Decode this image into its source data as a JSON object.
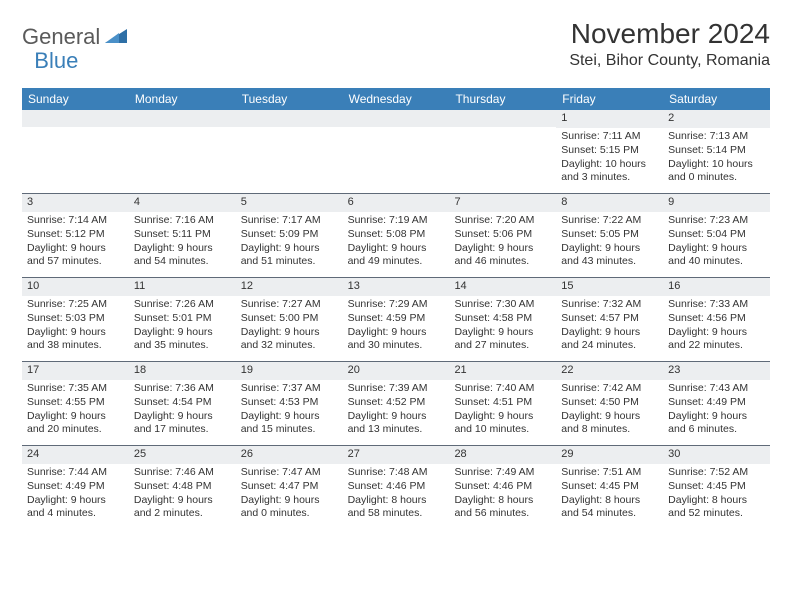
{
  "logo": {
    "word1": "General",
    "word2": "Blue"
  },
  "title": "November 2024",
  "location": "Stei, Bihor County, Romania",
  "dow": [
    "Sunday",
    "Monday",
    "Tuesday",
    "Wednesday",
    "Thursday",
    "Friday",
    "Saturday"
  ],
  "colors": {
    "header_bg": "#3a7fb8",
    "header_text": "#ffffff",
    "daynum_bg": "#eceef0",
    "border": "#5f6a78",
    "text": "#333333"
  },
  "fonts": {
    "title_size_pt": 21,
    "location_size_pt": 12,
    "dow_size_pt": 9,
    "cell_size_pt": 8
  },
  "weeks": [
    [
      {
        "n": "",
        "sr": "",
        "ss": "",
        "dl": ""
      },
      {
        "n": "",
        "sr": "",
        "ss": "",
        "dl": ""
      },
      {
        "n": "",
        "sr": "",
        "ss": "",
        "dl": ""
      },
      {
        "n": "",
        "sr": "",
        "ss": "",
        "dl": ""
      },
      {
        "n": "",
        "sr": "",
        "ss": "",
        "dl": ""
      },
      {
        "n": "1",
        "sr": "Sunrise: 7:11 AM",
        "ss": "Sunset: 5:15 PM",
        "dl": "Daylight: 10 hours and 3 minutes."
      },
      {
        "n": "2",
        "sr": "Sunrise: 7:13 AM",
        "ss": "Sunset: 5:14 PM",
        "dl": "Daylight: 10 hours and 0 minutes."
      }
    ],
    [
      {
        "n": "3",
        "sr": "Sunrise: 7:14 AM",
        "ss": "Sunset: 5:12 PM",
        "dl": "Daylight: 9 hours and 57 minutes."
      },
      {
        "n": "4",
        "sr": "Sunrise: 7:16 AM",
        "ss": "Sunset: 5:11 PM",
        "dl": "Daylight: 9 hours and 54 minutes."
      },
      {
        "n": "5",
        "sr": "Sunrise: 7:17 AM",
        "ss": "Sunset: 5:09 PM",
        "dl": "Daylight: 9 hours and 51 minutes."
      },
      {
        "n": "6",
        "sr": "Sunrise: 7:19 AM",
        "ss": "Sunset: 5:08 PM",
        "dl": "Daylight: 9 hours and 49 minutes."
      },
      {
        "n": "7",
        "sr": "Sunrise: 7:20 AM",
        "ss": "Sunset: 5:06 PM",
        "dl": "Daylight: 9 hours and 46 minutes."
      },
      {
        "n": "8",
        "sr": "Sunrise: 7:22 AM",
        "ss": "Sunset: 5:05 PM",
        "dl": "Daylight: 9 hours and 43 minutes."
      },
      {
        "n": "9",
        "sr": "Sunrise: 7:23 AM",
        "ss": "Sunset: 5:04 PM",
        "dl": "Daylight: 9 hours and 40 minutes."
      }
    ],
    [
      {
        "n": "10",
        "sr": "Sunrise: 7:25 AM",
        "ss": "Sunset: 5:03 PM",
        "dl": "Daylight: 9 hours and 38 minutes."
      },
      {
        "n": "11",
        "sr": "Sunrise: 7:26 AM",
        "ss": "Sunset: 5:01 PM",
        "dl": "Daylight: 9 hours and 35 minutes."
      },
      {
        "n": "12",
        "sr": "Sunrise: 7:27 AM",
        "ss": "Sunset: 5:00 PM",
        "dl": "Daylight: 9 hours and 32 minutes."
      },
      {
        "n": "13",
        "sr": "Sunrise: 7:29 AM",
        "ss": "Sunset: 4:59 PM",
        "dl": "Daylight: 9 hours and 30 minutes."
      },
      {
        "n": "14",
        "sr": "Sunrise: 7:30 AM",
        "ss": "Sunset: 4:58 PM",
        "dl": "Daylight: 9 hours and 27 minutes."
      },
      {
        "n": "15",
        "sr": "Sunrise: 7:32 AM",
        "ss": "Sunset: 4:57 PM",
        "dl": "Daylight: 9 hours and 24 minutes."
      },
      {
        "n": "16",
        "sr": "Sunrise: 7:33 AM",
        "ss": "Sunset: 4:56 PM",
        "dl": "Daylight: 9 hours and 22 minutes."
      }
    ],
    [
      {
        "n": "17",
        "sr": "Sunrise: 7:35 AM",
        "ss": "Sunset: 4:55 PM",
        "dl": "Daylight: 9 hours and 20 minutes."
      },
      {
        "n": "18",
        "sr": "Sunrise: 7:36 AM",
        "ss": "Sunset: 4:54 PM",
        "dl": "Daylight: 9 hours and 17 minutes."
      },
      {
        "n": "19",
        "sr": "Sunrise: 7:37 AM",
        "ss": "Sunset: 4:53 PM",
        "dl": "Daylight: 9 hours and 15 minutes."
      },
      {
        "n": "20",
        "sr": "Sunrise: 7:39 AM",
        "ss": "Sunset: 4:52 PM",
        "dl": "Daylight: 9 hours and 13 minutes."
      },
      {
        "n": "21",
        "sr": "Sunrise: 7:40 AM",
        "ss": "Sunset: 4:51 PM",
        "dl": "Daylight: 9 hours and 10 minutes."
      },
      {
        "n": "22",
        "sr": "Sunrise: 7:42 AM",
        "ss": "Sunset: 4:50 PM",
        "dl": "Daylight: 9 hours and 8 minutes."
      },
      {
        "n": "23",
        "sr": "Sunrise: 7:43 AM",
        "ss": "Sunset: 4:49 PM",
        "dl": "Daylight: 9 hours and 6 minutes."
      }
    ],
    [
      {
        "n": "24",
        "sr": "Sunrise: 7:44 AM",
        "ss": "Sunset: 4:49 PM",
        "dl": "Daylight: 9 hours and 4 minutes."
      },
      {
        "n": "25",
        "sr": "Sunrise: 7:46 AM",
        "ss": "Sunset: 4:48 PM",
        "dl": "Daylight: 9 hours and 2 minutes."
      },
      {
        "n": "26",
        "sr": "Sunrise: 7:47 AM",
        "ss": "Sunset: 4:47 PM",
        "dl": "Daylight: 9 hours and 0 minutes."
      },
      {
        "n": "27",
        "sr": "Sunrise: 7:48 AM",
        "ss": "Sunset: 4:46 PM",
        "dl": "Daylight: 8 hours and 58 minutes."
      },
      {
        "n": "28",
        "sr": "Sunrise: 7:49 AM",
        "ss": "Sunset: 4:46 PM",
        "dl": "Daylight: 8 hours and 56 minutes."
      },
      {
        "n": "29",
        "sr": "Sunrise: 7:51 AM",
        "ss": "Sunset: 4:45 PM",
        "dl": "Daylight: 8 hours and 54 minutes."
      },
      {
        "n": "30",
        "sr": "Sunrise: 7:52 AM",
        "ss": "Sunset: 4:45 PM",
        "dl": "Daylight: 8 hours and 52 minutes."
      }
    ]
  ]
}
